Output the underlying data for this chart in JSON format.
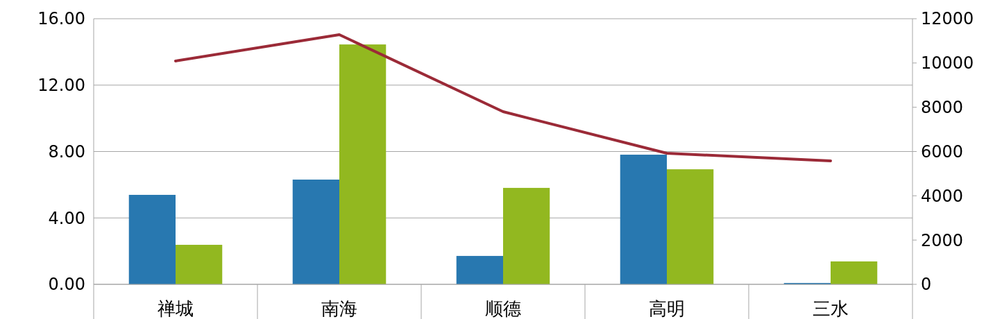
{
  "chart_data": {
    "type": "bar",
    "categories": [
      "禅城",
      "南海",
      "顺德",
      "高明",
      "三水"
    ],
    "series": [
      {
        "color": "#2878b0",
        "values": [
          5.39,
          6.31,
          1.71,
          7.81,
          0.08
        ]
      },
      {
        "color": "#92b820",
        "values": [
          2.38,
          14.45,
          5.81,
          6.93,
          1.38
        ]
      },
      {
        "type": "line",
        "axis": "y2",
        "color": "#9b2a37",
        "values": [
          10090,
          11280,
          7800,
          5920,
          5580
        ]
      }
    ],
    "ylim": [
      0,
      16
    ],
    "yticks": [
      {
        "value": 0,
        "label": "0.00"
      },
      {
        "value": 4,
        "label": "4.00"
      },
      {
        "value": 8,
        "label": "8.00"
      },
      {
        "value": 12,
        "label": "12.00"
      },
      {
        "value": 16,
        "label": "16.00"
      }
    ],
    "y2lim": [
      0,
      12000
    ],
    "y2ticks": [
      0,
      2000,
      4000,
      6000,
      8000,
      10000,
      12000
    ],
    "grid": "y"
  }
}
